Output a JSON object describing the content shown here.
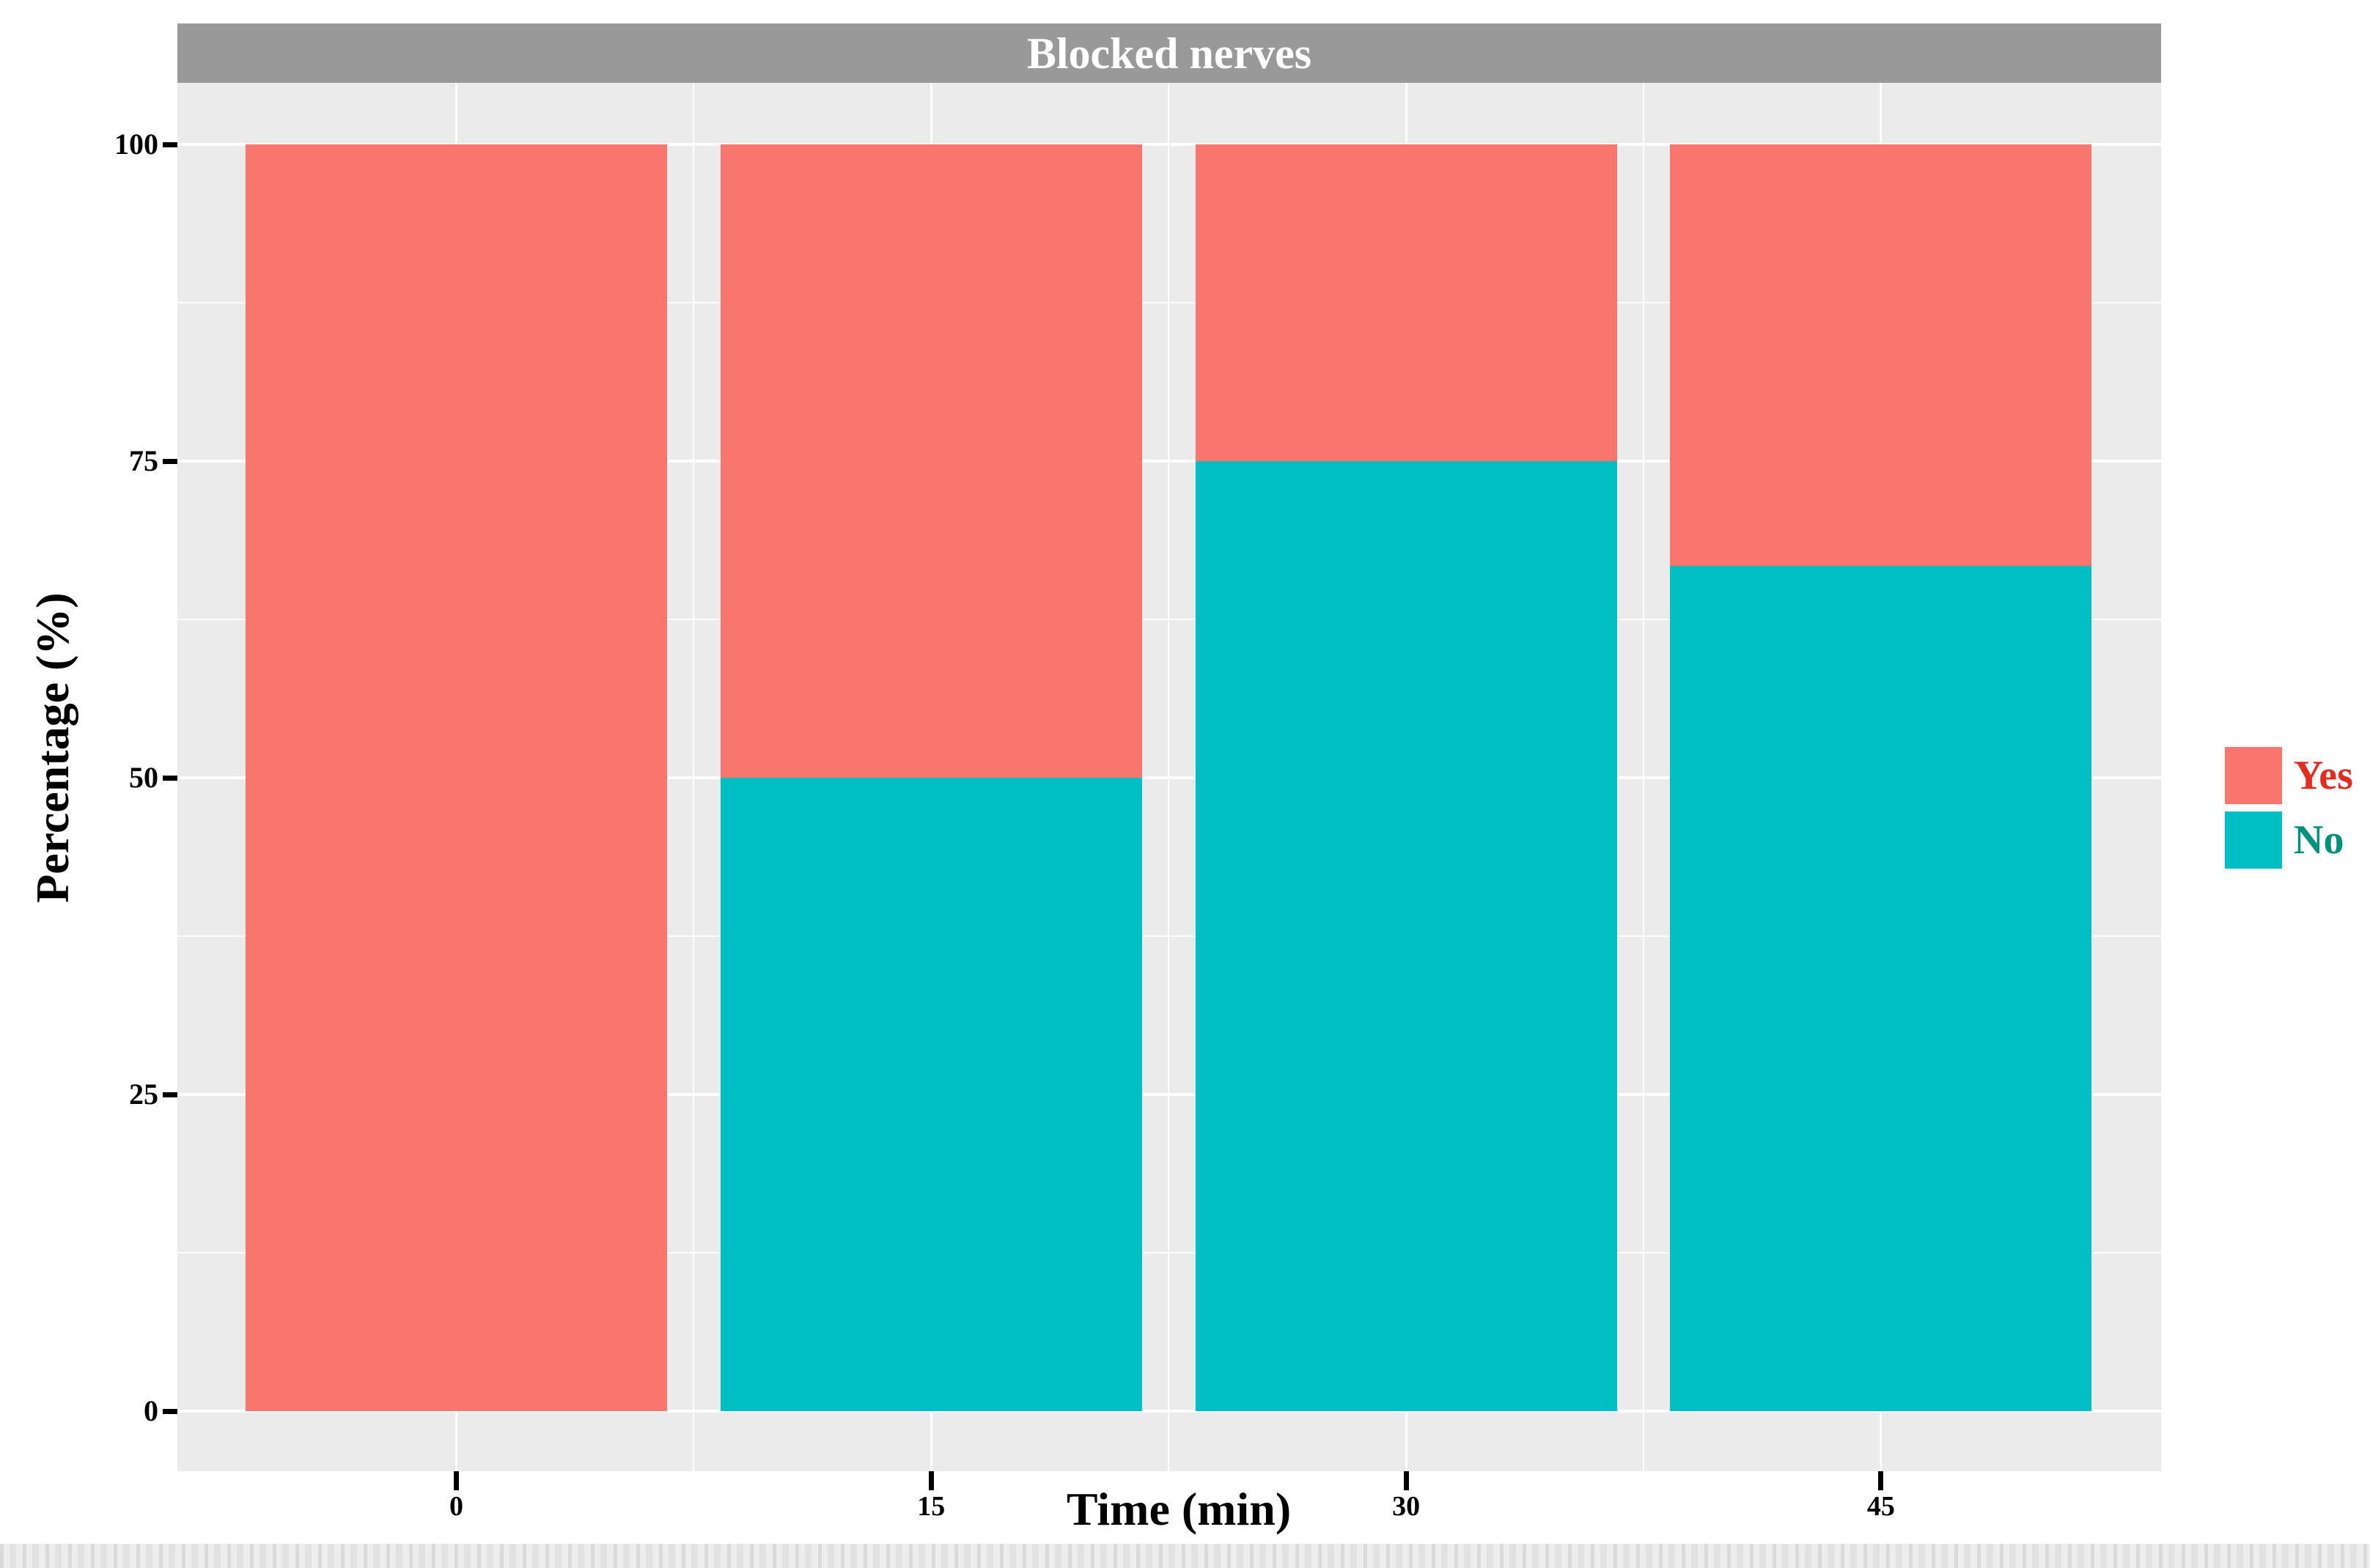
{
  "figure": {
    "title": "Blocked nerves",
    "y_axis_title": "Percentage (%)",
    "x_axis_title": "Time (min)"
  },
  "colors": {
    "strip_bg": "#999999",
    "strip_text": "#ffffff",
    "panel_bg": "#ebebeb",
    "gridline": "#ffffff",
    "tick": "#000000",
    "axis_text": "#000000",
    "yes_fill": "#f8766d",
    "no_fill": "#00bfc4",
    "yes_label_text": "#e52b1f",
    "no_label_text": "#00917c"
  },
  "chart_data": {
    "type": "bar",
    "stacked": true,
    "title": "Blocked nerves",
    "xlabel": "Time (min)",
    "ylabel": "Percentage (%)",
    "categories": [
      "0",
      "15",
      "30",
      "45"
    ],
    "series": [
      {
        "name": "Yes",
        "color": "#f8766d",
        "text_color": "#e52b1f",
        "values": [
          100,
          50,
          25,
          33.3
        ]
      },
      {
        "name": "No",
        "color": "#00bfc4",
        "text_color": "#00917c",
        "values": [
          0,
          50,
          75,
          66.7
        ]
      }
    ],
    "stack_order_bottom_to_top": [
      "No",
      "Yes"
    ],
    "ylim": [
      0,
      100
    ],
    "yticks": [
      0,
      25,
      50,
      75,
      100
    ],
    "y_minor_gridlines": [
      12.5,
      37.5,
      62.5,
      87.5
    ],
    "grid": true,
    "legend_position": "right-center",
    "legend_items": [
      {
        "label": "Yes"
      },
      {
        "label": "No"
      }
    ]
  }
}
